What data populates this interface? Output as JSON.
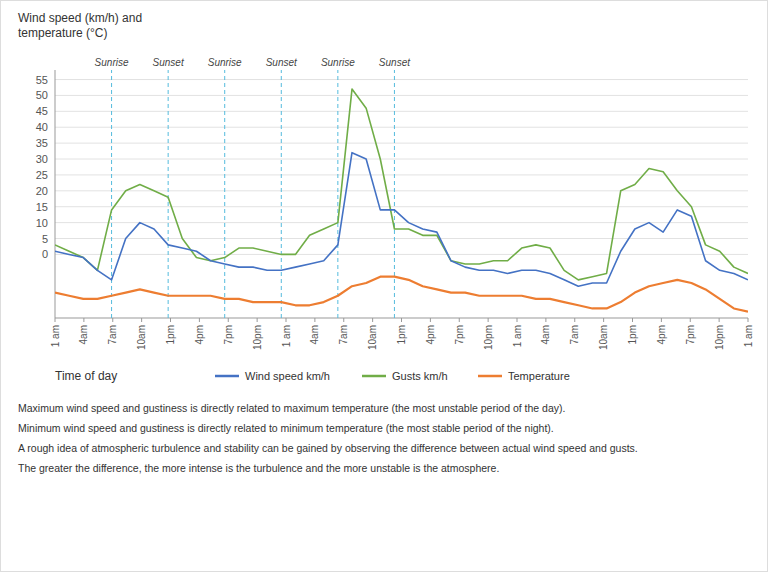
{
  "chart_data": {
    "type": "line",
    "y_label": "Wind speed (km/h) and\ntemperature (°C)",
    "x_label": "Time of day",
    "x": [
      0,
      1,
      2,
      3,
      4,
      5,
      6,
      7,
      8,
      9,
      10,
      11,
      12,
      13,
      14,
      15,
      16,
      17,
      18,
      19,
      20,
      21,
      22,
      23,
      24,
      25,
      26,
      27,
      28,
      29,
      30,
      31,
      32,
      33,
      34,
      35,
      36,
      37,
      38,
      39,
      40,
      41,
      42,
      43,
      44,
      45,
      46,
      47,
      48,
      49
    ],
    "xlim": [
      0,
      49
    ],
    "xticks": [
      {
        "value": 0,
        "label": "1 am"
      },
      {
        "value": 2.0416666666666665,
        "label": "4am"
      },
      {
        "value": 4.083333333333333,
        "label": "7am"
      },
      {
        "value": 6.125,
        "label": "10am"
      },
      {
        "value": 8.166666666666666,
        "label": "1pm"
      },
      {
        "value": 10.208333333333334,
        "label": "4pm"
      },
      {
        "value": 12.25,
        "label": "7pm"
      },
      {
        "value": 14.291666666666666,
        "label": "10pm"
      },
      {
        "value": 16.333333333333332,
        "label": "1 am"
      },
      {
        "value": 18.375,
        "label": "4am"
      },
      {
        "value": 20.416666666666668,
        "label": "7am"
      },
      {
        "value": 22.458333333333332,
        "label": "10am"
      },
      {
        "value": 24.5,
        "label": "1pm"
      },
      {
        "value": 26.541666666666668,
        "label": "4pm"
      },
      {
        "value": 28.583333333333332,
        "label": "7pm"
      },
      {
        "value": 30.625,
        "label": "10pm"
      },
      {
        "value": 32.666666666666664,
        "label": "1 am"
      },
      {
        "value": 34.708333333333336,
        "label": "4am"
      },
      {
        "value": 36.75,
        "label": "7am"
      },
      {
        "value": 38.791666666666664,
        "label": "10am"
      },
      {
        "value": 40.833333333333336,
        "label": "1pm"
      },
      {
        "value": 42.875,
        "label": "4pm"
      },
      {
        "value": 44.916666666666664,
        "label": "7pm"
      },
      {
        "value": 46.958333333333336,
        "label": "10pm"
      },
      {
        "value": 49,
        "label": "1 am"
      }
    ],
    "ylim": [
      -20,
      58
    ],
    "yticks": [
      0,
      5,
      10,
      15,
      20,
      25,
      30,
      35,
      40,
      45,
      50,
      55
    ],
    "grid": true,
    "legend": "bottom",
    "series": [
      {
        "name": "Wind speed km/h",
        "color": "#4472C4",
        "values": [
          1,
          0,
          -1,
          -5,
          -8,
          5,
          10,
          8,
          3,
          2,
          1,
          -2,
          -3,
          -4,
          -4,
          -5,
          -5,
          -4,
          -3,
          -2,
          3,
          32,
          30,
          14,
          14,
          10,
          8,
          7,
          -2,
          -4,
          -5,
          -5,
          -6,
          -5,
          -5,
          -6,
          -8,
          -10,
          -9,
          -9,
          1,
          8,
          10,
          7,
          14,
          12,
          -2,
          -5,
          -6,
          -8
        ]
      },
      {
        "name": "Gusts km/h",
        "color": "#70AD47",
        "values": [
          3,
          1,
          -1,
          -5,
          14,
          20,
          22,
          20,
          18,
          5,
          -1,
          -2,
          -1,
          2,
          2,
          1,
          0,
          0,
          6,
          8,
          10,
          52,
          46,
          30,
          8,
          8,
          6,
          6,
          -2,
          -3,
          -3,
          -2,
          -2,
          2,
          3,
          2,
          -5,
          -8,
          -7,
          -6,
          20,
          22,
          27,
          26,
          20,
          15,
          3,
          1,
          -4,
          -6
        ]
      },
      {
        "name": "Temperature",
        "color": "#ED7D31",
        "values": [
          -12,
          -13,
          -14,
          -14,
          -13,
          -12,
          -11,
          -12,
          -13,
          -13,
          -13,
          -13,
          -14,
          -14,
          -15,
          -15,
          -15,
          -16,
          -16,
          -15,
          -13,
          -10,
          -9,
          -7,
          -7,
          -8,
          -10,
          -11,
          -12,
          -12,
          -13,
          -13,
          -13,
          -13,
          -14,
          -14,
          -15,
          -16,
          -17,
          -17,
          -15,
          -12,
          -10,
          -9,
          -8,
          -9,
          -11,
          -14,
          -17,
          -18
        ]
      }
    ],
    "annotations": [
      {
        "x": 4,
        "text": "Sunrise"
      },
      {
        "x": 12,
        "text": "Sunrise"
      },
      {
        "x": 20,
        "text": "Sunrise"
      },
      {
        "x": 8,
        "text": "Sunset"
      },
      {
        "x": 16,
        "text": "Sunset"
      },
      {
        "x": 24,
        "text": "Sunset"
      }
    ],
    "notes": [
      "Maximum wind speed and gustiness is directly related to maximum temperature (the most unstable period of the day).",
      "Minimum wind speed and gustiness is directly related to minimum temperature (the most stable period of the night).",
      "A rough idea of atmospheric turbulence and stability can be gained by observing the difference between actual wind speed and gusts.",
      "The greater the difference, the more intense is the turbulence and the more unstable is the atmosphere."
    ]
  }
}
